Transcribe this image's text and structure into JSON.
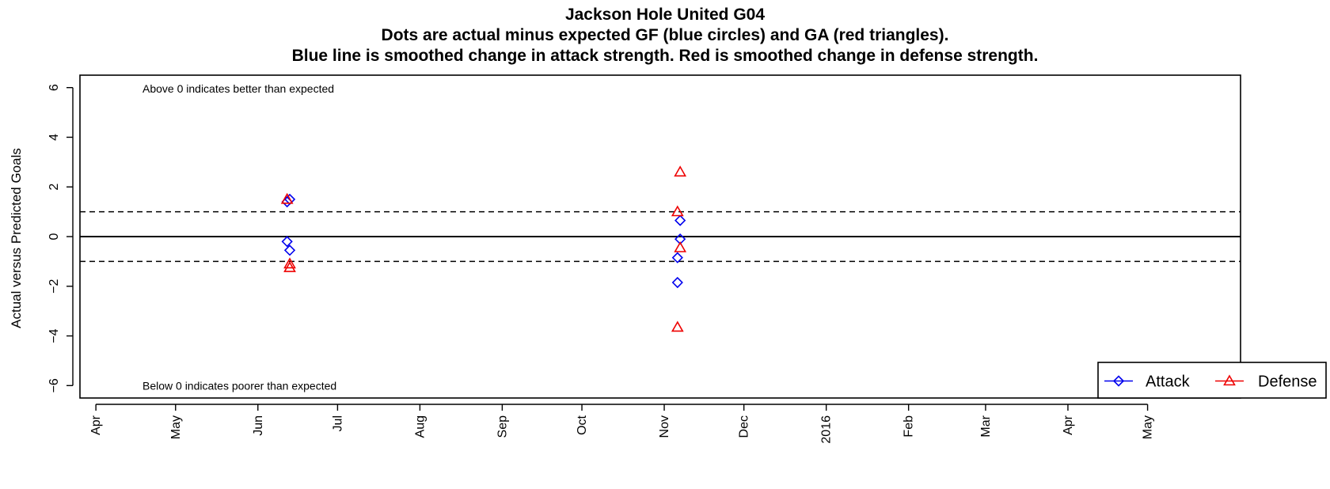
{
  "chart_data": {
    "type": "scatter",
    "title_lines": [
      "Jackson Hole United G04",
      "Dots are actual minus expected GF (blue circles) and GA (red triangles).",
      "Blue line is smoothed change in attack strength. Red is smoothed change in defense strength."
    ],
    "ylabel": "Actual versus Predicted Goals",
    "xlabel": "",
    "ylim": [
      -6.5,
      6.5
    ],
    "yticks": [
      -6,
      -4,
      -2,
      0,
      2,
      4,
      6
    ],
    "xlim": [
      "2015-03-26",
      "2016-06-05"
    ],
    "xticks": [
      {
        "date": "2015-04-01",
        "label": "Apr"
      },
      {
        "date": "2015-05-01",
        "label": "May"
      },
      {
        "date": "2015-06-01",
        "label": "Jun"
      },
      {
        "date": "2015-07-01",
        "label": "Jul"
      },
      {
        "date": "2015-08-01",
        "label": "Aug"
      },
      {
        "date": "2015-09-01",
        "label": "Sep"
      },
      {
        "date": "2015-10-01",
        "label": "Oct"
      },
      {
        "date": "2015-11-01",
        "label": "Nov"
      },
      {
        "date": "2015-12-01",
        "label": "Dec"
      },
      {
        "date": "2016-01-01",
        "label": "2016"
      },
      {
        "date": "2016-02-01",
        "label": "Feb"
      },
      {
        "date": "2016-03-01",
        "label": "Mar"
      },
      {
        "date": "2016-04-01",
        "label": "Apr"
      },
      {
        "date": "2016-05-01",
        "label": "May"
      }
    ],
    "reference_lines": [
      {
        "y": 0,
        "style": "solid"
      },
      {
        "y": 1,
        "style": "dashed"
      },
      {
        "y": -1,
        "style": "dashed"
      }
    ],
    "annotations": {
      "top": "Above 0 indicates better than expected",
      "bottom": "Below 0 indicates poorer than expected"
    },
    "legend": {
      "position": "bottom-right",
      "entries": [
        {
          "label": "Attack",
          "marker": "diamond",
          "color": "#0000ee"
        },
        {
          "label": "Defense",
          "marker": "triangle",
          "color": "#ee0000"
        }
      ]
    },
    "series": [
      {
        "name": "Attack",
        "marker": "diamond",
        "color": "#0000ee",
        "points": [
          {
            "x": "2015-06-12",
            "y": 1.4
          },
          {
            "x": "2015-06-13",
            "y": 1.5
          },
          {
            "x": "2015-06-12",
            "y": -0.2
          },
          {
            "x": "2015-06-13",
            "y": -0.55
          },
          {
            "x": "2015-11-07",
            "y": 0.65
          },
          {
            "x": "2015-11-07",
            "y": -0.1
          },
          {
            "x": "2015-11-06",
            "y": -0.85
          },
          {
            "x": "2015-11-06",
            "y": -1.85
          }
        ]
      },
      {
        "name": "Defense",
        "marker": "triangle",
        "color": "#ee0000",
        "points": [
          {
            "x": "2015-06-12",
            "y": 1.5
          },
          {
            "x": "2015-06-13",
            "y": -1.1
          },
          {
            "x": "2015-06-13",
            "y": -1.25
          },
          {
            "x": "2015-11-07",
            "y": 2.6
          },
          {
            "x": "2015-11-06",
            "y": 1.0
          },
          {
            "x": "2015-11-07",
            "y": -0.45
          },
          {
            "x": "2015-11-06",
            "y": -3.65
          }
        ]
      }
    ]
  }
}
